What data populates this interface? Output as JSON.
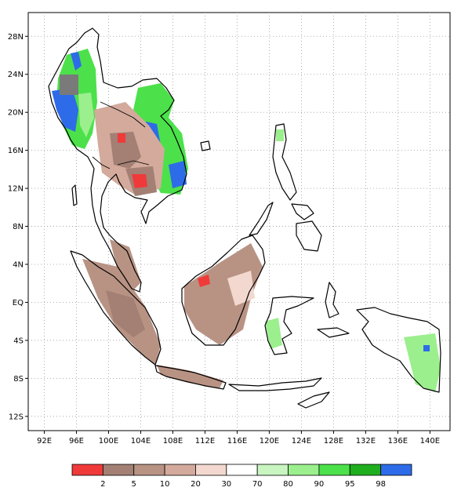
{
  "map": {
    "lat_labels": [
      "28N",
      "24N",
      "20N",
      "16N",
      "12N",
      "8N",
      "4N",
      "EQ",
      "4S",
      "8S",
      "12S"
    ],
    "lon_labels": [
      "92E",
      "96E",
      "100E",
      "104E",
      "108E",
      "112E",
      "116E",
      "120E",
      "124E",
      "128E",
      "132E",
      "136E",
      "140E"
    ],
    "lat_range": [
      -13.5,
      30.5
    ],
    "lon_range": [
      90.0,
      142.5
    ]
  },
  "legend": {
    "labels": [
      "2",
      "5",
      "10",
      "20",
      "30",
      "70",
      "80",
      "90",
      "95",
      "98"
    ],
    "colors": [
      "#f03a3a",
      "#a37f74",
      "#b89384",
      "#d3aa9c",
      "#f2d8cf",
      "#ffffff",
      "#c8f5c0",
      "#9bef8d",
      "#4ce14a",
      "#1fae1e",
      "#2d6be8"
    ]
  },
  "colors": {
    "land_outline": "#000000",
    "grid": "#9a9a9a",
    "missing": "#7a7a7a"
  }
}
